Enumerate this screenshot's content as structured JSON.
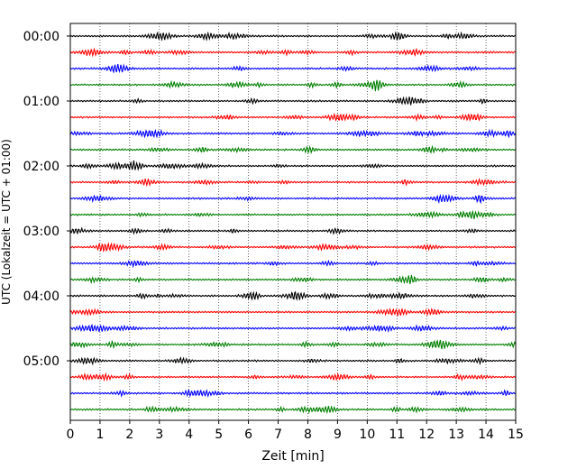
{
  "chart_data": {
    "type": "line",
    "title": "",
    "xlabel": "Zeit  [min]",
    "ylabel": "UTC (Lokalzeit = UTC + 01:00)",
    "xlim": [
      0,
      15
    ],
    "xticks": [
      "0",
      "1",
      "2",
      "3",
      "4",
      "5",
      "6",
      "7",
      "8",
      "9",
      "10",
      "11",
      "12",
      "13",
      "14",
      "15"
    ],
    "yticks": [
      "00:00",
      "01:00",
      "02:00",
      "03:00",
      "04:00",
      "05:00"
    ],
    "grid": "vertical dotted at each minute",
    "legend": "none",
    "trace_count": 24,
    "trace_interval_minutes": 15,
    "trace_colors": [
      "#000000",
      "#ff0000",
      "#0000ff",
      "#008000"
    ]
  }
}
